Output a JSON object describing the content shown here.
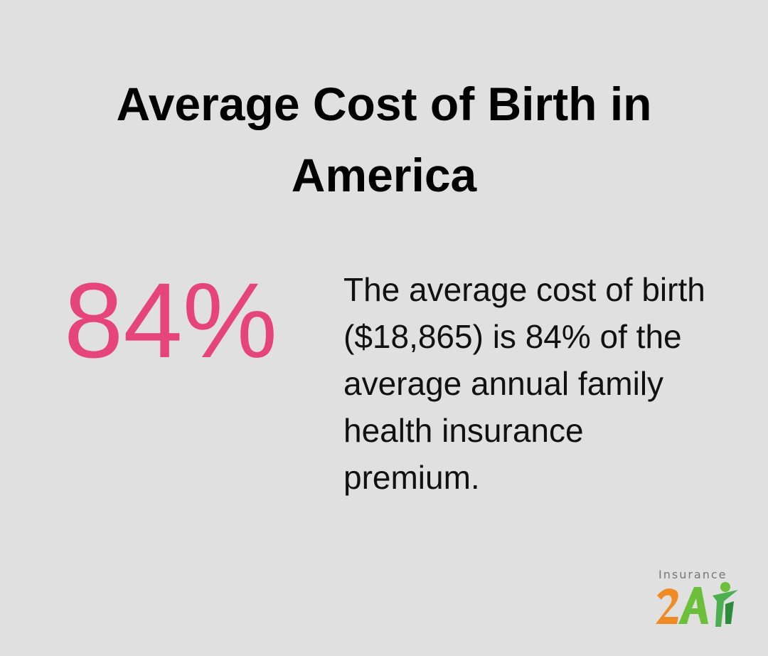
{
  "header": {
    "title": "Average Cost of Birth in America"
  },
  "stat": {
    "value": "84%",
    "description": "The average cost of birth ($18,865) is 84% of the average annual family health insurance premium."
  },
  "logo": {
    "label": "Insurance"
  }
}
